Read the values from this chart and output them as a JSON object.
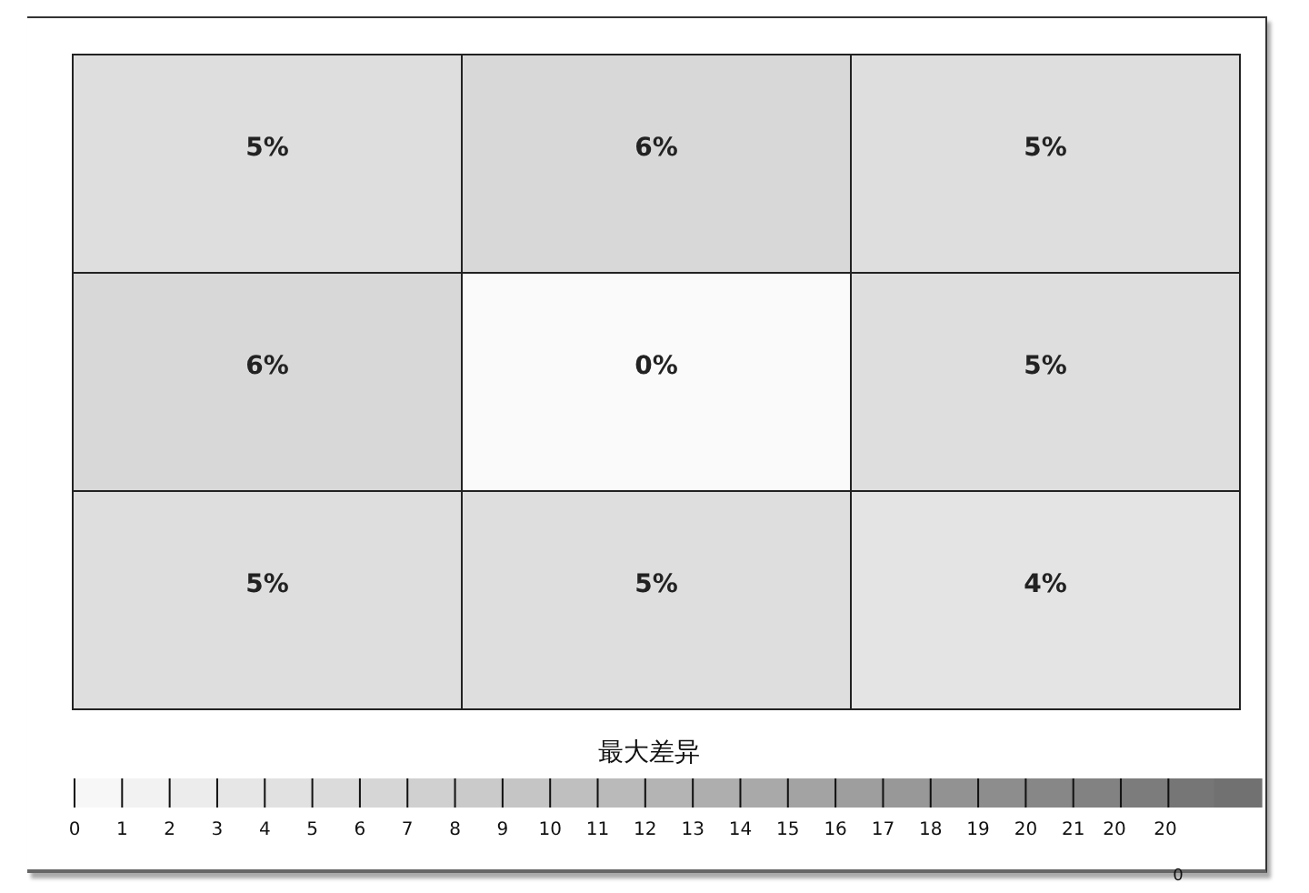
{
  "chart_data": {
    "type": "heatmap",
    "categories": [
      null,
      null,
      null
    ],
    "y_categories": [
      null,
      null,
      null
    ],
    "cells": [
      [
        5,
        6,
        5
      ],
      [
        6,
        0,
        5
      ],
      [
        5,
        5,
        4
      ]
    ],
    "cell_labels": [
      [
        "5%",
        "6%",
        "5%"
      ],
      [
        "6%",
        "0%",
        "5%"
      ],
      [
        "5%",
        "5%",
        "4%"
      ]
    ],
    "clabel": "最大差异",
    "clim": [
      0,
      25
    ],
    "cticks": [
      0,
      1,
      2,
      3,
      4,
      5,
      6,
      7,
      8,
      9,
      10,
      11,
      12,
      13,
      14,
      15,
      16,
      17,
      18,
      19,
      20,
      21,
      {
        "value": 22,
        "label": null
      },
      {
        "value": 23,
        "label": null
      }
    ],
    "annotations": [
      "20",
      "20",
      "0"
    ]
  }
}
